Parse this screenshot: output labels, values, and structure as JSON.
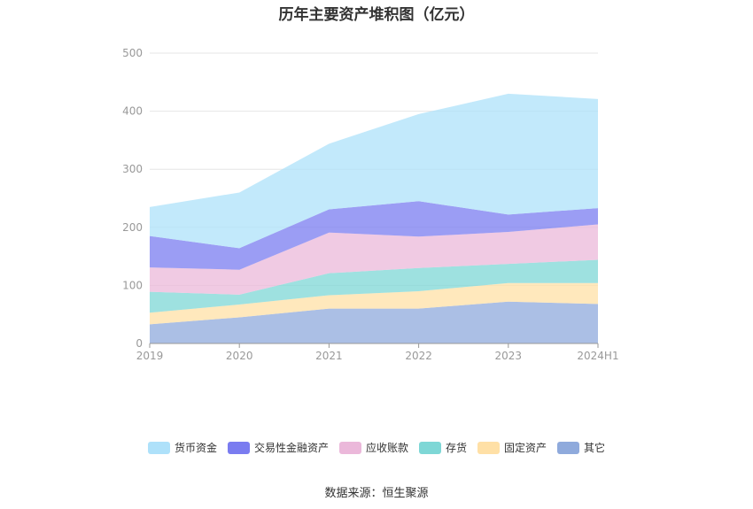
{
  "chart_data": {
    "type": "area",
    "stacked": true,
    "title": "历年主要资产堆积图（亿元）",
    "categories": [
      "2019",
      "2020",
      "2021",
      "2022",
      "2023",
      "2024H1"
    ],
    "ylim": [
      0,
      500
    ],
    "yticks": [
      "0",
      "100",
      "200",
      "300",
      "400",
      "500"
    ],
    "grid": true,
    "legend_position": "bottom",
    "series": [
      {
        "name": "其它",
        "color": "#8FAADC",
        "values": [
          33,
          45,
          60,
          60,
          72,
          68
        ]
      },
      {
        "name": "固定资产",
        "color": "#FFE0A6",
        "values": [
          20,
          22,
          23,
          30,
          32,
          36
        ]
      },
      {
        "name": "存货",
        "color": "#7ED7D6",
        "values": [
          36,
          17,
          38,
          40,
          33,
          40
        ]
      },
      {
        "name": "应收账款",
        "color": "#EBB8DA",
        "values": [
          42,
          43,
          70,
          54,
          55,
          61
        ]
      },
      {
        "name": "交易性金融资产",
        "color": "#7A7CF0",
        "values": [
          54,
          37,
          40,
          61,
          30,
          28
        ]
      },
      {
        "name": "货币资金",
        "color": "#AEE1FA",
        "values": [
          50,
          96,
          113,
          150,
          208,
          188
        ]
      }
    ],
    "legend_order": [
      "货币资金",
      "交易性金融资产",
      "应收账款",
      "存货",
      "固定资产",
      "其它"
    ]
  },
  "source": "数据来源：恒生聚源"
}
